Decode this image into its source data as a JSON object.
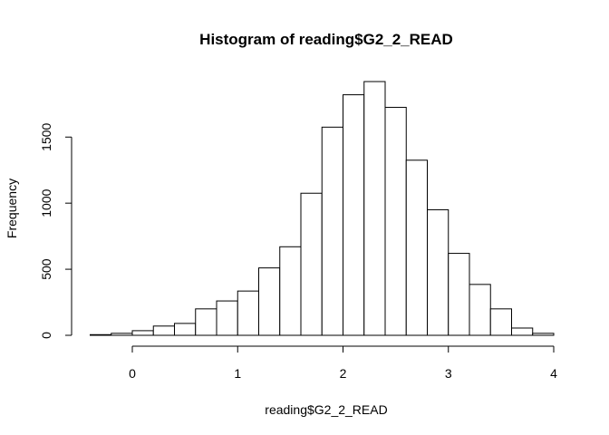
{
  "chart_data": {
    "type": "bar",
    "title": "Histogram of reading$G2_2_READ",
    "xlabel": "reading$G2_2_READ",
    "ylabel": "Frequency",
    "bin_width": 0.2,
    "bins": [
      {
        "x0": -0.4,
        "x1": -0.2,
        "count": 5
      },
      {
        "x0": -0.2,
        "x1": 0.0,
        "count": 15
      },
      {
        "x0": 0.0,
        "x1": 0.2,
        "count": 35
      },
      {
        "x0": 0.2,
        "x1": 0.4,
        "count": 70
      },
      {
        "x0": 0.4,
        "x1": 0.6,
        "count": 90
      },
      {
        "x0": 0.6,
        "x1": 0.8,
        "count": 200
      },
      {
        "x0": 0.8,
        "x1": 1.0,
        "count": 260
      },
      {
        "x0": 1.0,
        "x1": 1.2,
        "count": 335
      },
      {
        "x0": 1.2,
        "x1": 1.4,
        "count": 510
      },
      {
        "x0": 1.4,
        "x1": 1.6,
        "count": 670
      },
      {
        "x0": 1.6,
        "x1": 1.8,
        "count": 1075
      },
      {
        "x0": 1.8,
        "x1": 2.0,
        "count": 1575
      },
      {
        "x0": 2.0,
        "x1": 2.2,
        "count": 1820
      },
      {
        "x0": 2.2,
        "x1": 2.4,
        "count": 1920
      },
      {
        "x0": 2.4,
        "x1": 2.6,
        "count": 1725
      },
      {
        "x0": 2.6,
        "x1": 2.8,
        "count": 1325
      },
      {
        "x0": 2.8,
        "x1": 3.0,
        "count": 950
      },
      {
        "x0": 3.0,
        "x1": 3.2,
        "count": 620
      },
      {
        "x0": 3.2,
        "x1": 3.4,
        "count": 385
      },
      {
        "x0": 3.4,
        "x1": 3.6,
        "count": 200
      },
      {
        "x0": 3.6,
        "x1": 3.8,
        "count": 55
      },
      {
        "x0": 3.8,
        "x1": 4.0,
        "count": 15
      }
    ],
    "x_ticks": [
      0,
      1,
      2,
      3,
      4
    ],
    "x_tick_labels": [
      "0",
      "1",
      "2",
      "3",
      "4"
    ],
    "y_ticks": [
      0,
      500,
      1000,
      1500
    ],
    "y_tick_labels": [
      "0",
      "500",
      "1000",
      "1500"
    ],
    "xlim": [
      -0.4,
      4.0
    ],
    "ylim": [
      0,
      1920
    ],
    "grid": false,
    "legend": "none"
  }
}
